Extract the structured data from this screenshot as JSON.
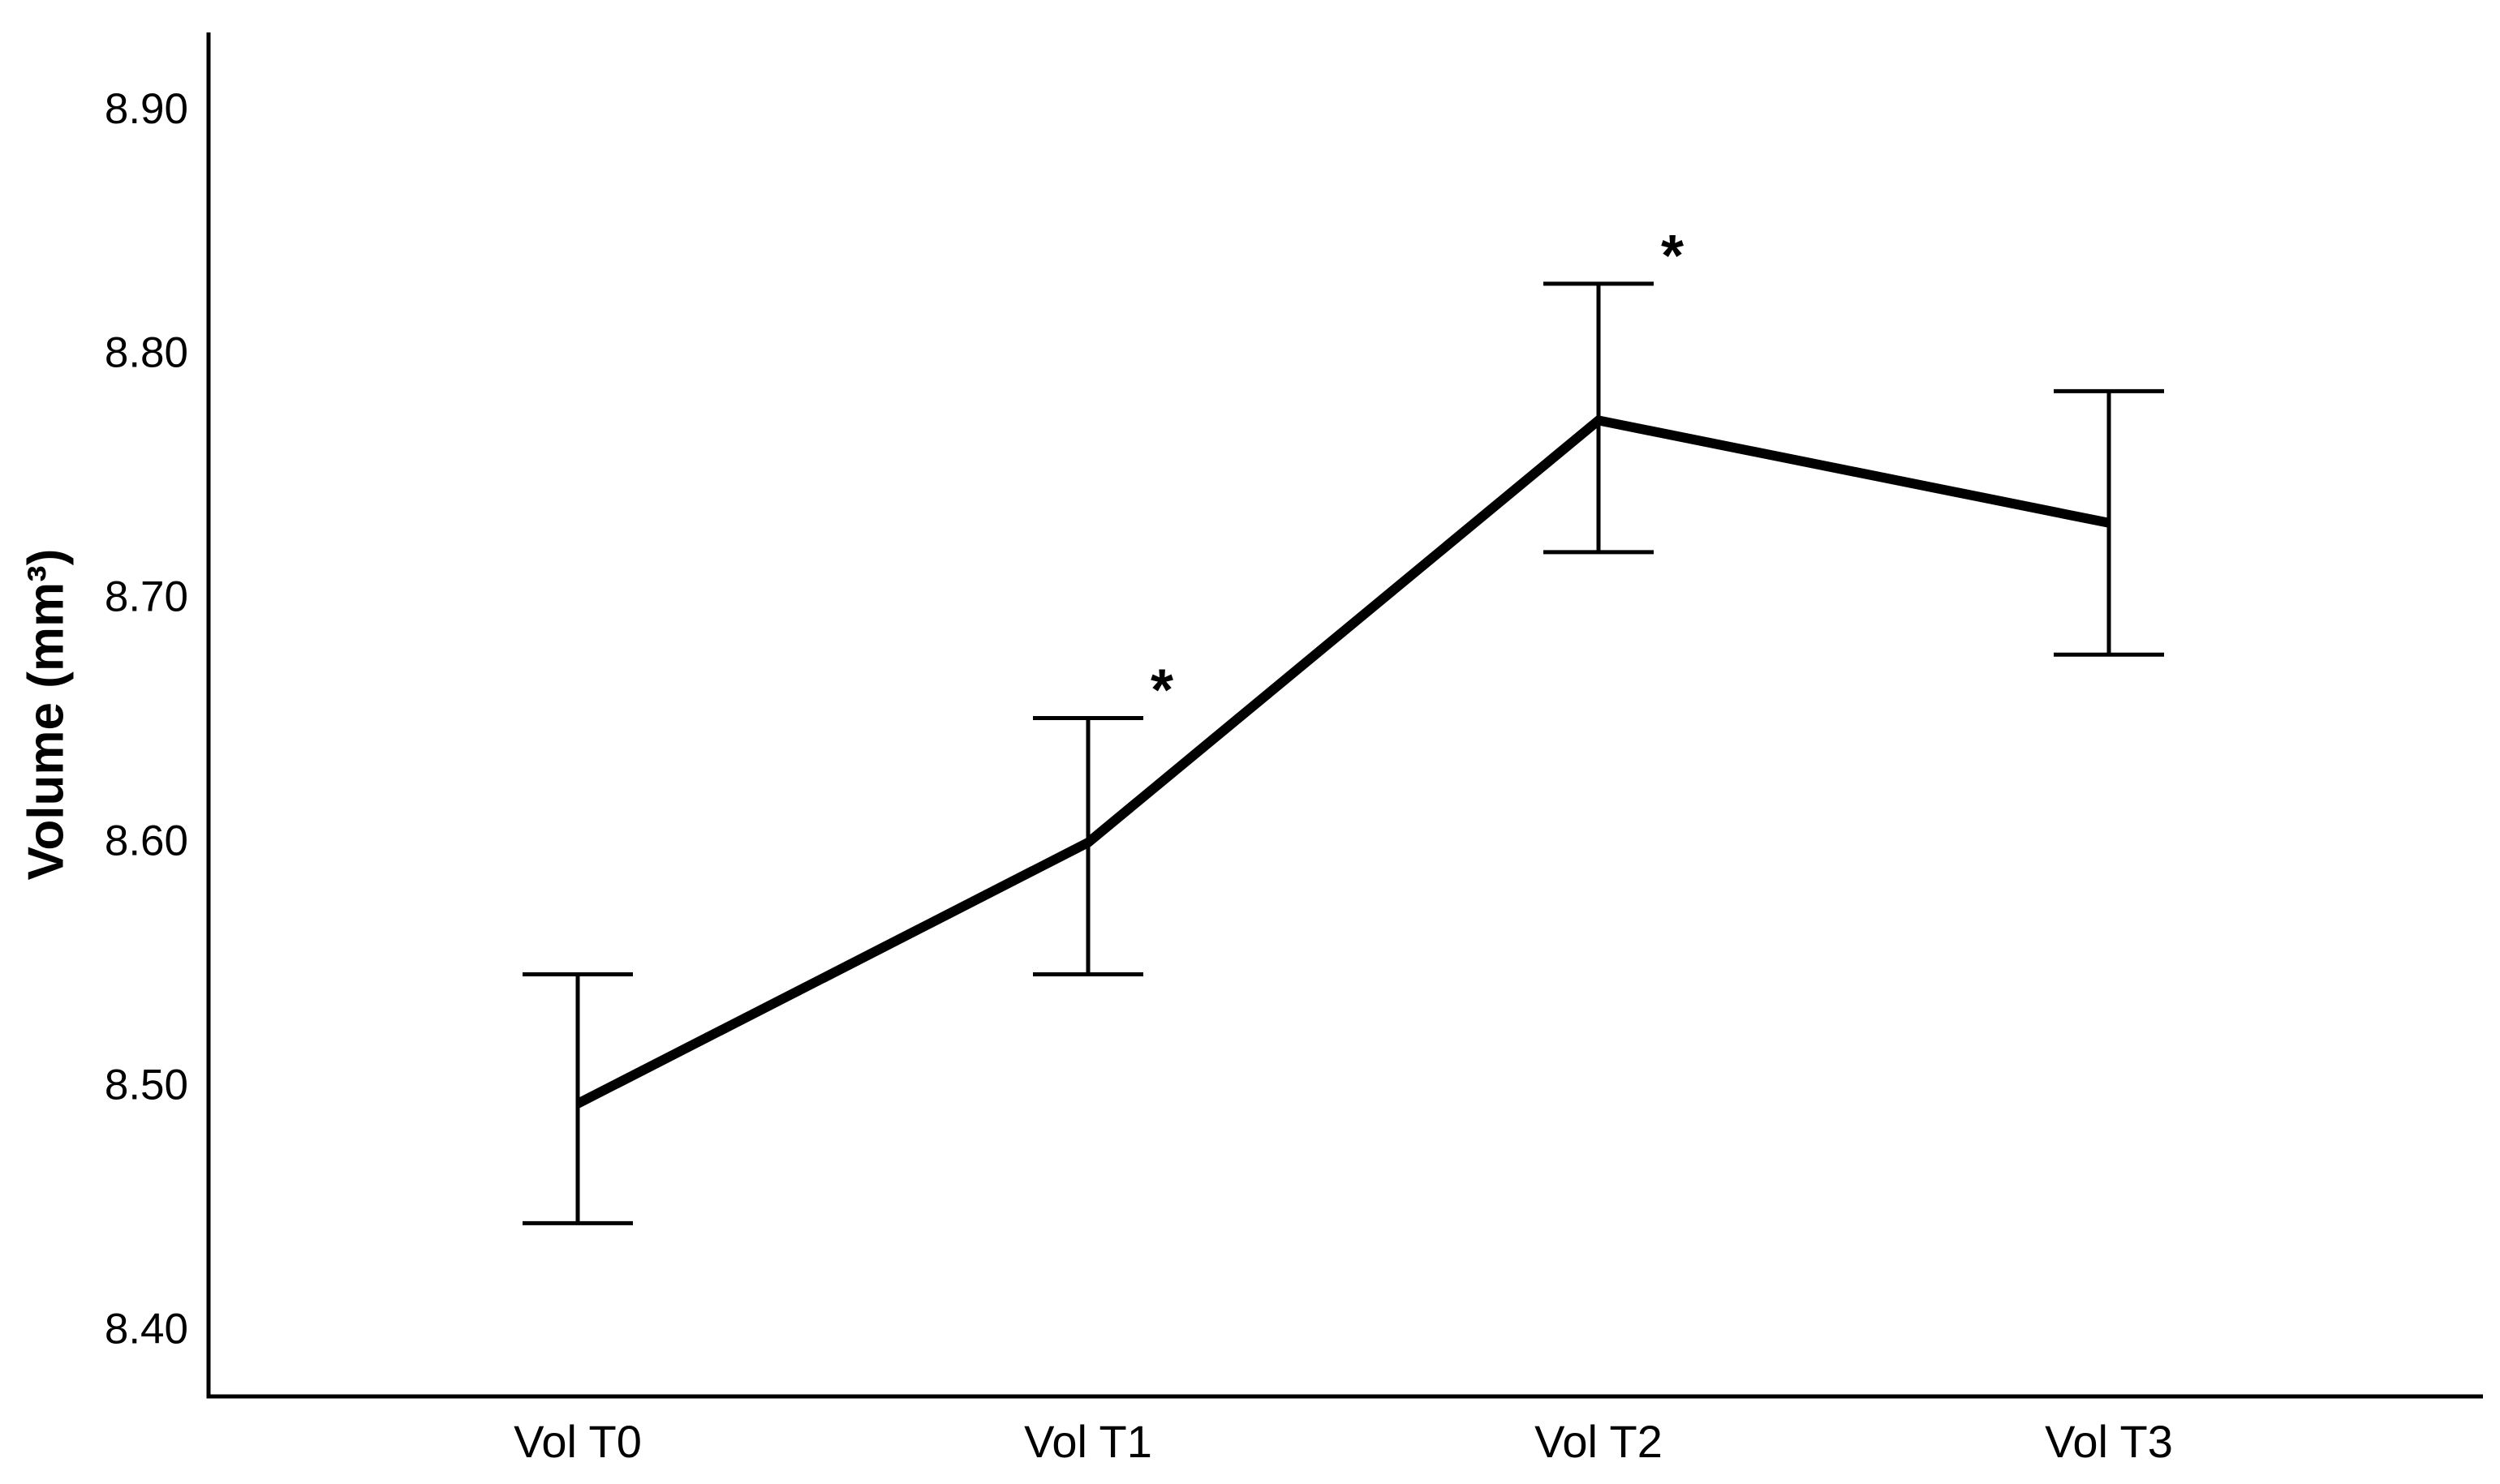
{
  "chart_data": {
    "type": "line",
    "title": "",
    "xlabel": "",
    "ylabel": "Volume (mm³)",
    "categories": [
      "Vol T0",
      "Vol T1",
      "Vol T2",
      "Vol T3"
    ],
    "series": [
      {
        "name": "Volume",
        "values": [
          8.492,
          8.599,
          8.772,
          8.73
        ],
        "error_low": [
          8.443,
          8.545,
          8.718,
          8.676
        ],
        "error_high": [
          8.545,
          8.65,
          8.828,
          8.784
        ]
      }
    ],
    "significance_markers": [
      {
        "text": "*",
        "category": "Vol T1"
      },
      {
        "text": "*",
        "category": "Vol T2"
      }
    ],
    "yticks": [
      {
        "value": 8.4,
        "label": "8.40"
      },
      {
        "value": 8.5,
        "label": "8.50"
      },
      {
        "value": 8.6,
        "label": "8.60"
      },
      {
        "value": 8.7,
        "label": "8.70"
      },
      {
        "value": 8.8,
        "label": "8.80"
      },
      {
        "value": 8.9,
        "label": "8.90"
      }
    ],
    "ylim": [
      8.372,
      8.931
    ],
    "grid": false,
    "legend": false,
    "colors": {
      "line": "#000000",
      "error_bar": "#000000",
      "axis": "#000000",
      "text": "#000000",
      "background": "#ffffff"
    }
  }
}
